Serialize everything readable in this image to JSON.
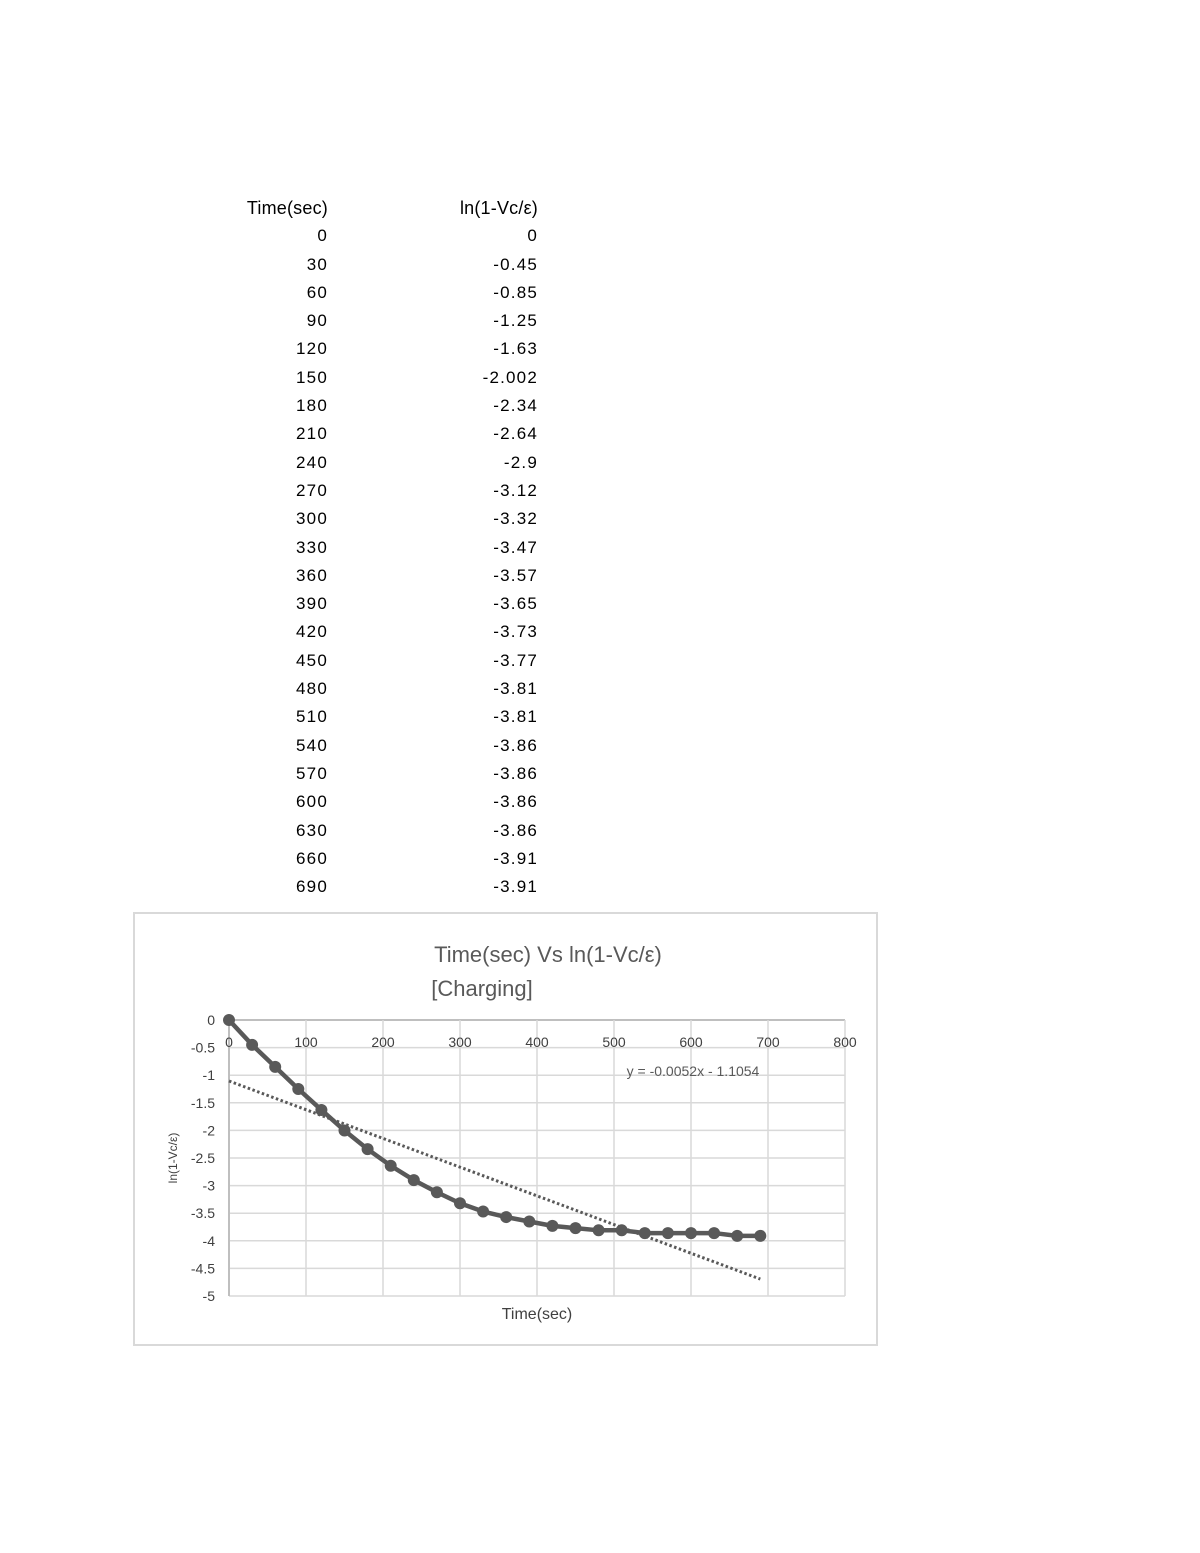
{
  "table": {
    "headers": [
      "Time(sec)",
      "ln(1-Vc/ε)"
    ],
    "rows": [
      [
        "0",
        "0"
      ],
      [
        "30",
        "-0.45"
      ],
      [
        "60",
        "-0.85"
      ],
      [
        "90",
        "-1.25"
      ],
      [
        "120",
        "-1.63"
      ],
      [
        "150",
        "-2.002"
      ],
      [
        "180",
        "-2.34"
      ],
      [
        "210",
        "-2.64"
      ],
      [
        "240",
        "-2.9"
      ],
      [
        "270",
        "-3.12"
      ],
      [
        "300",
        "-3.32"
      ],
      [
        "330",
        "-3.47"
      ],
      [
        "360",
        "-3.57"
      ],
      [
        "390",
        "-3.65"
      ],
      [
        "420",
        "-3.73"
      ],
      [
        "450",
        "-3.77"
      ],
      [
        "480",
        "-3.81"
      ],
      [
        "510",
        "-3.81"
      ],
      [
        "540",
        "-3.86"
      ],
      [
        "570",
        "-3.86"
      ],
      [
        "600",
        "-3.86"
      ],
      [
        "630",
        "-3.86"
      ],
      [
        "660",
        "-3.91"
      ],
      [
        "690",
        "-3.91"
      ]
    ]
  },
  "chart_data": {
    "type": "scatter",
    "title": "Time(sec) Vs  ln(1-Vc/ε)",
    "subtitle": "[Charging]",
    "xlabel": "Time(sec)",
    "ylabel": "ln(1-Vc/ε)",
    "xlim": [
      0,
      800
    ],
    "ylim": [
      -5,
      0
    ],
    "xticks": [
      "0",
      "100",
      "200",
      "300",
      "400",
      "500",
      "600",
      "700",
      "800"
    ],
    "yticks": [
      "0",
      "-0.5",
      "-1",
      "-1.5",
      "-2",
      "-2.5",
      "-3",
      "-3.5",
      "-4",
      "-4.5",
      "-5"
    ],
    "grid": true,
    "x_axis_position": "top",
    "series": [
      {
        "x": [
          0,
          30,
          60,
          90,
          120,
          150,
          180,
          210,
          240,
          270,
          300,
          330,
          360,
          390,
          420,
          450,
          480,
          510,
          540,
          570,
          600,
          630,
          660,
          690
        ],
        "y": [
          0,
          -0.45,
          -0.85,
          -1.25,
          -1.63,
          -2.002,
          -2.34,
          -2.64,
          -2.9,
          -3.12,
          -3.32,
          -3.47,
          -3.57,
          -3.65,
          -3.73,
          -3.77,
          -3.81,
          -3.81,
          -3.86,
          -3.86,
          -3.86,
          -3.86,
          -3.91,
          -3.91
        ],
        "color": "#595959",
        "marker": "circle",
        "line": "solid"
      }
    ],
    "trendline": {
      "type": "linear",
      "slope": -0.0052,
      "intercept": -1.1054,
      "x_range": [
        0,
        690
      ],
      "style": "dotted",
      "color": "#595959",
      "equation_label": "y = -0.0052x - 1.1054"
    }
  }
}
